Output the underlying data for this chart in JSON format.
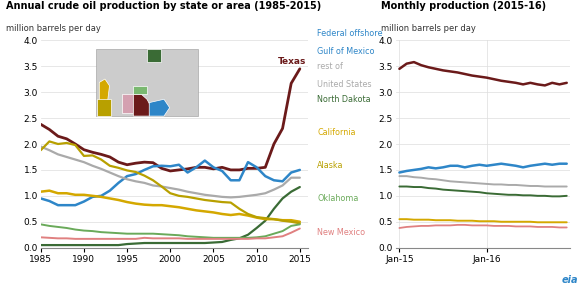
{
  "title1": "Annual crude oil production by state or area (1985-2015)",
  "subtitle1": "million barrels per day",
  "title2": "Monthly production (2015-16)",
  "subtitle2": "million barrels per day",
  "years": [
    1985,
    1986,
    1987,
    1988,
    1989,
    1990,
    1991,
    1992,
    1993,
    1994,
    1995,
    1996,
    1997,
    1998,
    1999,
    2000,
    2001,
    2002,
    2003,
    2004,
    2005,
    2006,
    2007,
    2008,
    2009,
    2010,
    2011,
    2012,
    2013,
    2014,
    2015
  ],
  "series": {
    "Texas": {
      "color": "#6b1a1a",
      "lw": 2.0,
      "values": [
        2.38,
        2.28,
        2.15,
        2.1,
        2.0,
        1.89,
        1.84,
        1.8,
        1.75,
        1.65,
        1.6,
        1.63,
        1.65,
        1.64,
        1.53,
        1.48,
        1.5,
        1.52,
        1.55,
        1.55,
        1.52,
        1.55,
        1.5,
        1.5,
        1.53,
        1.53,
        1.55,
        2.0,
        2.3,
        3.17,
        3.45
      ]
    },
    "Federal offshore Gulf of Mexico": {
      "color": "#2e86c8",
      "lw": 1.8,
      "values": [
        0.95,
        0.9,
        0.82,
        0.82,
        0.82,
        0.89,
        0.98,
        1.0,
        1.1,
        1.25,
        1.38,
        1.42,
        1.5,
        1.57,
        1.58,
        1.57,
        1.6,
        1.45,
        1.55,
        1.68,
        1.55,
        1.48,
        1.3,
        1.3,
        1.65,
        1.55,
        1.38,
        1.3,
        1.28,
        1.45,
        1.5
      ]
    },
    "rest of United States": {
      "color": "#aaaaaa",
      "lw": 1.6,
      "values": [
        1.95,
        1.88,
        1.8,
        1.75,
        1.7,
        1.65,
        1.58,
        1.52,
        1.45,
        1.38,
        1.32,
        1.28,
        1.25,
        1.2,
        1.18,
        1.15,
        1.12,
        1.08,
        1.05,
        1.02,
        1.0,
        0.98,
        0.97,
        0.98,
        1.0,
        1.02,
        1.05,
        1.12,
        1.2,
        1.35,
        1.35
      ]
    },
    "North Dakota": {
      "color": "#3a6b35",
      "lw": 1.6,
      "values": [
        0.05,
        0.05,
        0.05,
        0.05,
        0.05,
        0.05,
        0.05,
        0.05,
        0.05,
        0.05,
        0.07,
        0.08,
        0.09,
        0.09,
        0.09,
        0.09,
        0.09,
        0.09,
        0.09,
        0.09,
        0.1,
        0.11,
        0.15,
        0.18,
        0.25,
        0.38,
        0.52,
        0.75,
        0.95,
        1.08,
        1.17
      ]
    },
    "California": {
      "color": "#d4a800",
      "lw": 1.8,
      "values": [
        1.08,
        1.1,
        1.05,
        1.05,
        1.02,
        1.02,
        1.0,
        0.98,
        0.95,
        0.92,
        0.88,
        0.85,
        0.83,
        0.82,
        0.82,
        0.8,
        0.78,
        0.75,
        0.72,
        0.7,
        0.68,
        0.65,
        0.63,
        0.65,
        0.62,
        0.58,
        0.55,
        0.55,
        0.53,
        0.53,
        0.5
      ]
    },
    "Alaska": {
      "color": "#b8a000",
      "lw": 1.6,
      "values": [
        1.88,
        2.05,
        2.0,
        2.02,
        1.98,
        1.77,
        1.78,
        1.7,
        1.58,
        1.54,
        1.49,
        1.46,
        1.39,
        1.3,
        1.18,
        1.05,
        1.0,
        0.98,
        0.95,
        0.92,
        0.9,
        0.88,
        0.87,
        0.75,
        0.65,
        0.59,
        0.57,
        0.55,
        0.52,
        0.5,
        0.47
      ]
    },
    "Oklahoma": {
      "color": "#6aaa5a",
      "lw": 1.4,
      "values": [
        0.45,
        0.42,
        0.4,
        0.38,
        0.35,
        0.33,
        0.32,
        0.3,
        0.29,
        0.28,
        0.27,
        0.27,
        0.27,
        0.27,
        0.26,
        0.25,
        0.24,
        0.22,
        0.21,
        0.2,
        0.19,
        0.19,
        0.19,
        0.19,
        0.19,
        0.2,
        0.22,
        0.27,
        0.32,
        0.42,
        0.45
      ]
    },
    "New Mexico": {
      "color": "#e08080",
      "lw": 1.4,
      "values": [
        0.2,
        0.19,
        0.18,
        0.18,
        0.17,
        0.17,
        0.17,
        0.17,
        0.17,
        0.17,
        0.17,
        0.17,
        0.19,
        0.18,
        0.18,
        0.18,
        0.18,
        0.17,
        0.17,
        0.17,
        0.17,
        0.17,
        0.17,
        0.17,
        0.17,
        0.18,
        0.18,
        0.2,
        0.22,
        0.29,
        0.37
      ]
    }
  },
  "monthly_months": [
    0,
    1,
    2,
    3,
    4,
    5,
    6,
    7,
    8,
    9,
    10,
    11,
    12,
    13,
    14,
    15,
    16,
    17,
    18,
    19,
    20,
    21,
    22,
    23
  ],
  "monthly_series": {
    "Texas": {
      "color": "#6b1a1a",
      "lw": 1.8,
      "values": [
        3.45,
        3.55,
        3.58,
        3.52,
        3.48,
        3.45,
        3.42,
        3.4,
        3.38,
        3.35,
        3.32,
        3.3,
        3.28,
        3.25,
        3.22,
        3.2,
        3.18,
        3.15,
        3.18,
        3.15,
        3.13,
        3.18,
        3.15,
        3.18
      ]
    },
    "Federal offshore Gulf of Mexico": {
      "color": "#2e86c8",
      "lw": 1.8,
      "values": [
        1.45,
        1.48,
        1.5,
        1.52,
        1.55,
        1.53,
        1.55,
        1.58,
        1.58,
        1.55,
        1.58,
        1.6,
        1.58,
        1.6,
        1.62,
        1.6,
        1.58,
        1.55,
        1.58,
        1.6,
        1.62,
        1.6,
        1.62,
        1.62
      ]
    },
    "rest of United States": {
      "color": "#aaaaaa",
      "lw": 1.4,
      "values": [
        1.38,
        1.38,
        1.36,
        1.35,
        1.33,
        1.32,
        1.3,
        1.28,
        1.27,
        1.26,
        1.25,
        1.24,
        1.23,
        1.22,
        1.22,
        1.21,
        1.21,
        1.2,
        1.19,
        1.19,
        1.18,
        1.18,
        1.18,
        1.18
      ]
    },
    "North Dakota": {
      "color": "#3a6b35",
      "lw": 1.4,
      "values": [
        1.18,
        1.18,
        1.17,
        1.17,
        1.15,
        1.14,
        1.12,
        1.11,
        1.1,
        1.09,
        1.08,
        1.07,
        1.05,
        1.04,
        1.03,
        1.02,
        1.02,
        1.01,
        1.01,
        1.0,
        1.0,
        0.99,
        0.99,
        1.0
      ]
    },
    "California": {
      "color": "#d4a800",
      "lw": 1.4,
      "values": [
        0.55,
        0.55,
        0.54,
        0.54,
        0.54,
        0.53,
        0.53,
        0.53,
        0.52,
        0.52,
        0.52,
        0.51,
        0.51,
        0.51,
        0.5,
        0.5,
        0.5,
        0.5,
        0.5,
        0.49,
        0.49,
        0.49,
        0.49,
        0.49
      ]
    },
    "New Mexico": {
      "color": "#e08080",
      "lw": 1.3,
      "values": [
        0.38,
        0.4,
        0.41,
        0.42,
        0.42,
        0.43,
        0.43,
        0.43,
        0.44,
        0.44,
        0.43,
        0.43,
        0.43,
        0.42,
        0.42,
        0.42,
        0.41,
        0.41,
        0.41,
        0.4,
        0.4,
        0.4,
        0.39,
        0.39
      ]
    }
  },
  "ylim": [
    0.0,
    4.0
  ],
  "yticks": [
    0.0,
    0.5,
    1.0,
    1.5,
    2.0,
    2.5,
    3.0,
    3.5,
    4.0
  ],
  "legend_entries": [
    {
      "label": "Federal offshore",
      "label2": "Gulf of Mexico",
      "color": "#2e86c8"
    },
    {
      "label": "rest of",
      "label2": "United States",
      "color": "#aaaaaa"
    },
    {
      "label": "North Dakota",
      "label2": "",
      "color": "#3a6b35"
    },
    {
      "label": "California",
      "label2": "",
      "color": "#d4a800"
    },
    {
      "label": "Alaska",
      "label2": "",
      "color": "#b8a000"
    },
    {
      "label": "Oklahoma",
      "label2": "",
      "color": "#6aaa5a"
    },
    {
      "label": "New Mexico",
      "label2": "",
      "color": "#e08080"
    }
  ]
}
